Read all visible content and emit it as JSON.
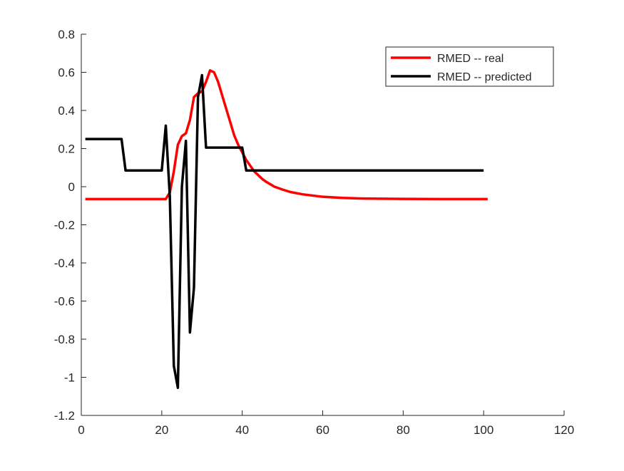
{
  "chart_data": {
    "type": "line",
    "title": "",
    "xlabel": "",
    "ylabel": "",
    "xlim": [
      0,
      120
    ],
    "ylim": [
      -1.2,
      0.8
    ],
    "xticks": [
      0,
      20,
      40,
      60,
      80,
      100,
      120
    ],
    "yticks": [
      -1.2,
      -1,
      -0.8,
      -0.6,
      -0.4,
      -0.2,
      0,
      0.2,
      0.4,
      0.6,
      0.8
    ],
    "xtick_labels": [
      "0",
      "20",
      "40",
      "60",
      "80",
      "100",
      "120"
    ],
    "ytick_labels": [
      "-1.2",
      "-1",
      "-0.8",
      "-0.6",
      "-0.4",
      "-0.2",
      "0",
      "0.2",
      "0.4",
      "0.6",
      "0.8"
    ],
    "grid": false,
    "legend_position": "top-right",
    "series": [
      {
        "name": "RMED -- real",
        "color": "#ff0000",
        "x": [
          1,
          5,
          10,
          15,
          20,
          21,
          22,
          23,
          24,
          25,
          26,
          27,
          28,
          29,
          30,
          31,
          32,
          33,
          34,
          35,
          36,
          37,
          38,
          39,
          40,
          41,
          42,
          43,
          44,
          45,
          46,
          48,
          50,
          52,
          55,
          60,
          65,
          70,
          80,
          90,
          100,
          101
        ],
        "y": [
          -0.065,
          -0.065,
          -0.065,
          -0.065,
          -0.065,
          -0.065,
          -0.03,
          0.08,
          0.22,
          0.265,
          0.28,
          0.35,
          0.47,
          0.49,
          0.5,
          0.55,
          0.61,
          0.6,
          0.55,
          0.48,
          0.41,
          0.34,
          0.27,
          0.22,
          0.18,
          0.14,
          0.11,
          0.08,
          0.06,
          0.04,
          0.025,
          0.0,
          -0.015,
          -0.028,
          -0.04,
          -0.053,
          -0.059,
          -0.062,
          -0.064,
          -0.065,
          -0.065,
          -0.065
        ]
      },
      {
        "name": "RMED -- predicted",
        "color": "#000000",
        "x": [
          1,
          5,
          10,
          11,
          15,
          20,
          21,
          22,
          23,
          24,
          25,
          26,
          27,
          28,
          29,
          30,
          31,
          35,
          40,
          41,
          45,
          50,
          60,
          70,
          80,
          90,
          100
        ],
        "y": [
          0.25,
          0.25,
          0.25,
          0.085,
          0.085,
          0.085,
          0.32,
          -0.05,
          -0.94,
          -1.055,
          0.0,
          0.24,
          -0.765,
          -0.53,
          0.47,
          0.585,
          0.205,
          0.205,
          0.205,
          0.085,
          0.085,
          0.085,
          0.085,
          0.085,
          0.085,
          0.085,
          0.085
        ]
      }
    ]
  }
}
